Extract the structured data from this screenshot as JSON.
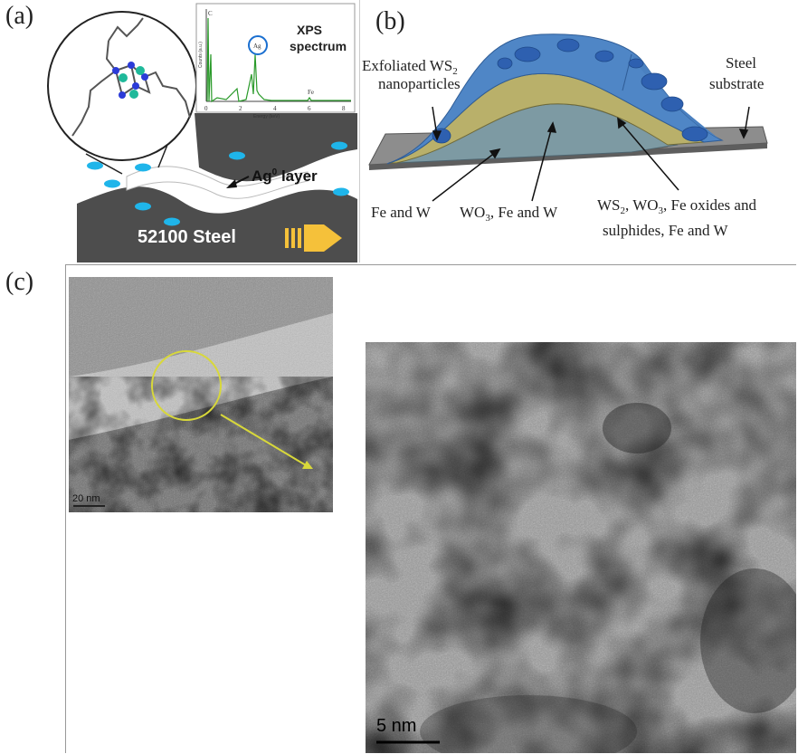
{
  "panel_a": {
    "label": "(a)",
    "xps_title": "XPS",
    "xps_title2": "spectrum",
    "inset_ylabel": "Counts (a.u.)",
    "inset_xlabel": "Energy (keV)",
    "inset_ticks": [
      "0",
      "2",
      "4",
      "6",
      "8"
    ],
    "peak_c": "C",
    "peak_ag": "Ag",
    "peak_fe": "Fe",
    "ag_layer": "Ag",
    "ag_layer_sup": "0",
    "ag_layer_suffix": " layer",
    "steel": "52100 Steel",
    "colors": {
      "steel": "#4d4d4d",
      "droplet": "#1fb5ea",
      "arrow": "#f5c13a",
      "spectrum": "#2a9a2a"
    }
  },
  "panel_b": {
    "label": "(b)",
    "exfoliated_1": "Exfoliated WS",
    "exfoliated_sub": "2",
    "exfoliated_2": "nanoparticles",
    "steel_1": "Steel",
    "steel_2": "substrate",
    "fe_w": "Fe and W",
    "wo3_a": "WO",
    "wo3_sub": "3",
    "wo3_b": ", Fe and W",
    "ws2_a": "WS",
    "ws2_sub": "2",
    "ws2_b": ", WO",
    "ws2_sub2": "3",
    "ws2_c": ", Fe oxides and",
    "ws2_line2": "sulphides, Fe and W",
    "colors": {
      "top": "#4f86c6",
      "mid": "#b9b06a",
      "lower": "#7d9aa3",
      "base": "#b08a6e",
      "substrate": "#8a8a8a"
    }
  },
  "panel_c": {
    "label": "(c)",
    "scale_small": "20 nm",
    "scale_large": "5 nm",
    "colors": {
      "circle": "#d8d83a"
    }
  }
}
